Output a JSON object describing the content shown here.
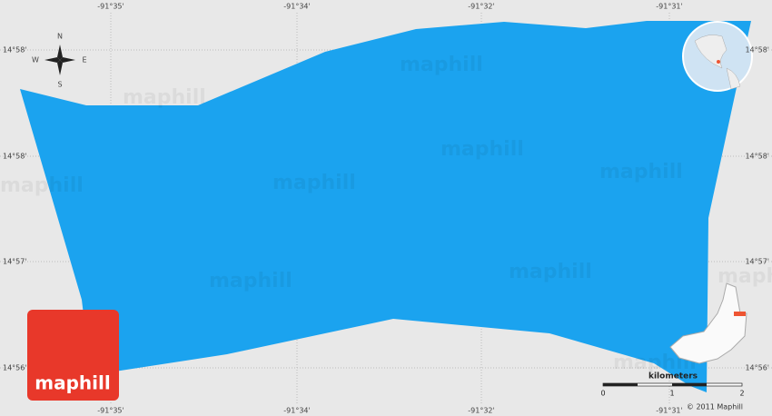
{
  "map": {
    "lon_labels": [
      "-91°35'",
      "-91°34'",
      "-91°32'",
      "-91°31'"
    ],
    "lat_labels": [
      "14°58'",
      "14°58'",
      "14°57'",
      "14°56'"
    ],
    "compass": {
      "n": "N",
      "s": "S",
      "e": "E",
      "w": "W"
    },
    "watermark": "maphill",
    "logo": "maphill",
    "scale": {
      "unit": "kilometers",
      "ticks": [
        "0",
        "1",
        "2"
      ]
    },
    "copyright": "© 2011 Maphill"
  }
}
